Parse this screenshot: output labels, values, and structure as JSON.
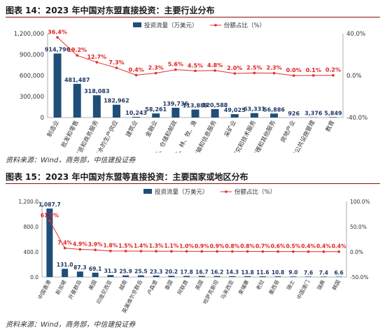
{
  "figures": [
    {
      "title": "图表 14：2023 年中国对东盟直接投资：主要行业分布",
      "source": "资料来源：Wind，商务部，中信建投证券"
    },
    {
      "title": "图表 15：2023 年中国对东盟等直接投资：主要国家或地区分布",
      "source": "资料来源：Wind，商务部，中信建投证券"
    }
  ],
  "chart_data": [
    {
      "type": "bar",
      "categories": [
        "制造业",
        "批发和零售",
        "租赁和商务服务",
        "电力气水的生产供应",
        "建筑业",
        "金融业",
        "交运、仓储和邮政",
        "农、林、牧、渔",
        "信息传输和信息服务",
        "采矿业",
        "科学研究和技术服务",
        "居民服务修理和其他服务",
        "房地产业",
        "水利环境公共设施管理",
        "教育"
      ],
      "series": [
        {
          "name": "投资流量（万美元）",
          "type": "bar",
          "axis": "left",
          "values": [
            914796,
            481487,
            318083,
            182962,
            10243,
            58261,
            139736,
            113889,
            120588,
            49025,
            63331,
            56886,
            926,
            3376,
            5849
          ],
          "labels": [
            "914,796",
            "481,487",
            "318,083",
            "182,962",
            "10,243",
            "58,261",
            "139,736",
            "113,889",
            "120,588",
            "49,025",
            "63,331",
            "56,886",
            "926",
            "3,376",
            "5,849"
          ]
        },
        {
          "name": "份额占比（%）",
          "type": "line",
          "axis": "right",
          "values": [
            36.4,
            19.2,
            12.7,
            7.3,
            0.4,
            2.3,
            5.6,
            4.5,
            4.8,
            2.0,
            2.5,
            2.3,
            0.0,
            0.1,
            0.2
          ],
          "labels": [
            "36.4%",
            "19.2%",
            "12.7%",
            "7.3%",
            "0.4%",
            "2.3%",
            "5.6%",
            "4.5%",
            "4.8%",
            "2.0%",
            "2.5%",
            "2.3%",
            "0.0%",
            "0.1%",
            "0.2%"
          ]
        }
      ],
      "ylim_left": [
        0,
        1200000
      ],
      "yticks_left": [
        "0",
        "300,000",
        "600,000",
        "900,000",
        "1,200,000"
      ],
      "ylim_right": [
        -40,
        40
      ],
      "yticks_right": [
        "-40.0%",
        "0.0%",
        "40.0%"
      ],
      "legend_placement": "top",
      "colors": {
        "bar": "#1f4e79",
        "line": "#e03030",
        "label_bar": "#1f3864",
        "label_line": "#e02020"
      }
    },
    {
      "type": "bar",
      "categories": [
        "中国香港",
        "新加坡",
        "开曼群岛",
        "美国",
        "印度尼西亚",
        "越南",
        "英属维尔京群岛",
        "卢森堡",
        "泰国",
        "阿联酋",
        "英国",
        "哈萨克斯坦",
        "马来西亚",
        "柬埔寨",
        "老挝",
        "墨西哥",
        "瑞士",
        "中国澳门",
        "瑞典",
        "韩国"
      ],
      "series": [
        {
          "name": "投资流量（万美元）",
          "type": "bar",
          "axis": "left",
          "values": [
            1087.7,
            131.0,
            87.3,
            69.1,
            31.3,
            25.9,
            25.5,
            23.3,
            20.2,
            17.8,
            16.7,
            16.2,
            14.3,
            13.8,
            11.6,
            10.8,
            9.0,
            7.6,
            7.4,
            6.6
          ],
          "labels": [
            "1,087.7",
            "131.0",
            "87.3",
            "69.1",
            "31.3",
            "25.9",
            "25.5",
            "23.3",
            "20.2",
            "17.8",
            "16.7",
            "16.2",
            "14.3",
            "13.8",
            "11.6",
            "10.8",
            "9.0",
            "7.6",
            "7.4",
            "6.6"
          ]
        },
        {
          "name": "份额占比（%）",
          "type": "line",
          "axis": "right",
          "values": [
            61.9,
            7.4,
            4.9,
            3.9,
            1.8,
            1.5,
            1.4,
            1.3,
            1.1,
            1.0,
            0.9,
            0.9,
            0.8,
            0.8,
            0.7,
            0.6,
            0.5,
            0.4,
            0.4,
            0.4
          ],
          "labels": [
            "61.9%",
            "7.4%",
            "4.9%",
            "3.9%",
            "1.8%",
            "1.5%",
            "1.4%",
            "1.3%",
            "1.1%",
            "1.0%",
            "0.9%",
            "0.9%",
            "0.8%",
            "0.8%",
            "0.7%",
            "0.6%",
            "0.5%",
            "0.4%",
            "0.4%",
            "0.4%"
          ]
        }
      ],
      "ylim_left": [
        0,
        1200
      ],
      "yticks_left": [
        "0.0",
        "400.0",
        "800.0",
        "1,200.0"
      ],
      "ylim_right": [
        -50,
        100
      ],
      "yticks_right": [
        "-50.0%",
        "0.0%",
        "50.0%",
        "100.0%"
      ],
      "legend_placement": "top",
      "colors": {
        "bar": "#1f4e79",
        "line": "#e03030",
        "label_bar": "#1f3864",
        "label_line": "#e02020"
      }
    }
  ]
}
